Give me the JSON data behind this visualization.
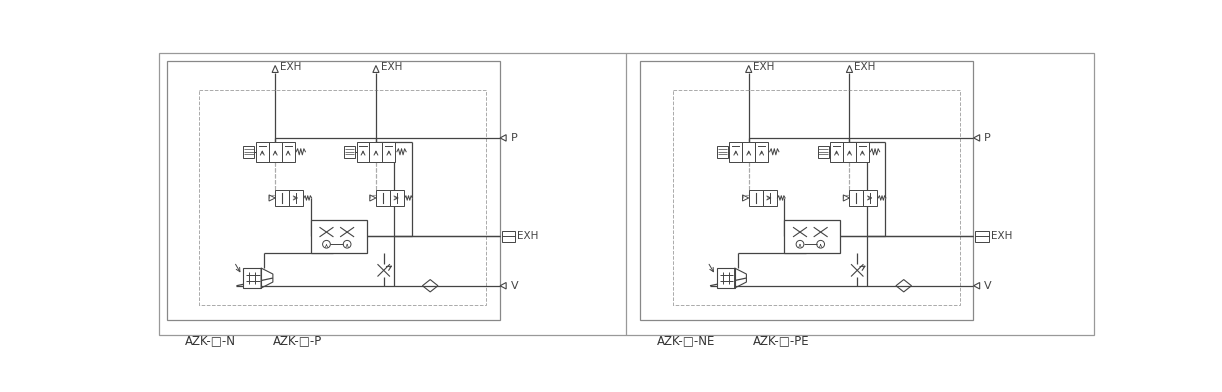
{
  "background_color": "#ffffff",
  "lc": "#444444",
  "dc": "#aaaaaa",
  "tc": "#444444",
  "bc": "#888888",
  "figsize": [
    12.22,
    3.92
  ],
  "dpi": 100,
  "labels": {
    "l1": "AZK-□-N",
    "l2": "AZK-□-P",
    "r1": "AZK-□-NE",
    "r2": "AZK-□-PE"
  }
}
